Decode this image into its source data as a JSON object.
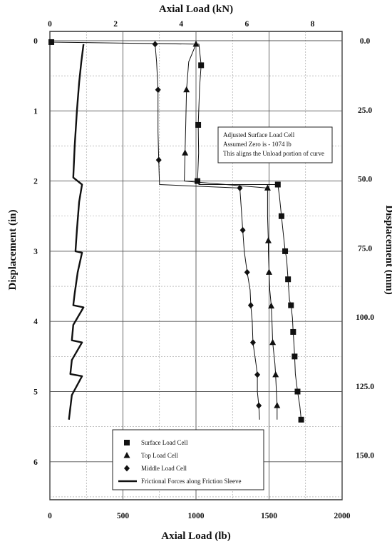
{
  "chart_data": {
    "type": "line",
    "top_axis": {
      "label": "Axial Load (kN)",
      "ticks": [
        "0",
        "2",
        "4",
        "6",
        "8"
      ],
      "range_kN": [
        0,
        8.9
      ]
    },
    "bottom_axis": {
      "label": "Axial Load (lb)",
      "ticks": [
        "0",
        "500",
        "1000",
        "1500",
        "2000"
      ],
      "range": [
        0,
        2000
      ]
    },
    "left_axis": {
      "label": "Displacement (in)",
      "ticks": [
        "0",
        "1",
        "2",
        "3",
        "4",
        "5",
        "6"
      ],
      "range": [
        0,
        6.5
      ],
      "inverted": true
    },
    "right_axis": {
      "label": "Displacement (mm)",
      "ticks": [
        "0.0",
        "25.0",
        "50.0",
        "75.0",
        "100.0",
        "125.0",
        "150.0"
      ]
    },
    "grid": true,
    "annotation": [
      "Adjusted Surface Load Cell",
      "Assumed Zero is - 1074 lb",
      "This aligns the Unload portion of curve"
    ],
    "legend_position": "bottom-center",
    "series": [
      {
        "name": "Surface Load Cell",
        "marker": "square",
        "points": [
          [
            10,
            0.02
          ],
          [
            1020,
            0.05
          ],
          [
            1035,
            0.35
          ],
          [
            1025,
            0.65
          ],
          [
            1015,
            1.2
          ],
          [
            1018,
            1.6
          ],
          [
            1010,
            2.0
          ],
          [
            1020,
            2.05
          ],
          [
            1560,
            2.05
          ],
          [
            1570,
            2.2
          ],
          [
            1585,
            2.5
          ],
          [
            1600,
            2.8
          ],
          [
            1610,
            3.0
          ],
          [
            1620,
            3.1
          ],
          [
            1630,
            3.4
          ],
          [
            1640,
            3.7
          ],
          [
            1650,
            3.77
          ],
          [
            1660,
            3.95
          ],
          [
            1665,
            4.15
          ],
          [
            1670,
            4.3
          ],
          [
            1675,
            4.5
          ],
          [
            1680,
            4.75
          ],
          [
            1695,
            5.0
          ],
          [
            1710,
            5.2
          ],
          [
            1720,
            5.4
          ]
        ]
      },
      {
        "name": "Top Load Cell",
        "marker": "triangle",
        "points": [
          [
            1000,
            0.05
          ],
          [
            950,
            0.3
          ],
          [
            935,
            0.7
          ],
          [
            930,
            1.2
          ],
          [
            925,
            1.6
          ],
          [
            920,
            2.0
          ],
          [
            1490,
            2.1
          ],
          [
            1490,
            2.5
          ],
          [
            1495,
            2.85
          ],
          [
            1495,
            3.0
          ],
          [
            1500,
            3.3
          ],
          [
            1505,
            3.55
          ],
          [
            1515,
            3.78
          ],
          [
            1520,
            4.0
          ],
          [
            1525,
            4.3
          ],
          [
            1540,
            4.6
          ],
          [
            1545,
            4.76
          ],
          [
            1550,
            5.0
          ],
          [
            1555,
            5.2
          ],
          [
            1555,
            5.4
          ]
        ]
      },
      {
        "name": "Middle Load Cell",
        "marker": "diamond",
        "points": [
          [
            720,
            0.05
          ],
          [
            730,
            0.3
          ],
          [
            740,
            0.7
          ],
          [
            740,
            1.3
          ],
          [
            745,
            1.7
          ],
          [
            750,
            2.05
          ],
          [
            1300,
            2.1
          ],
          [
            1310,
            2.4
          ],
          [
            1320,
            2.7
          ],
          [
            1330,
            3.0
          ],
          [
            1350,
            3.3
          ],
          [
            1370,
            3.55
          ],
          [
            1375,
            3.77
          ],
          [
            1385,
            4.0
          ],
          [
            1390,
            4.3
          ],
          [
            1410,
            4.6
          ],
          [
            1420,
            4.76
          ],
          [
            1420,
            5.0
          ],
          [
            1430,
            5.2
          ],
          [
            1435,
            5.4
          ]
        ]
      },
      {
        "name": "Frictional Forces along Friction Sleeve",
        "marker": "none",
        "points": [
          [
            230,
            0.05
          ],
          [
            215,
            0.3
          ],
          [
            200,
            0.6
          ],
          [
            185,
            1.0
          ],
          [
            170,
            1.5
          ],
          [
            160,
            1.95
          ],
          [
            220,
            2.05
          ],
          [
            200,
            2.3
          ],
          [
            185,
            2.7
          ],
          [
            175,
            3.0
          ],
          [
            220,
            3.02
          ],
          [
            190,
            3.3
          ],
          [
            170,
            3.6
          ],
          [
            160,
            3.77
          ],
          [
            230,
            3.8
          ],
          [
            160,
            4.05
          ],
          [
            150,
            4.27
          ],
          [
            220,
            4.3
          ],
          [
            150,
            4.55
          ],
          [
            140,
            4.75
          ],
          [
            220,
            4.78
          ],
          [
            150,
            5.05
          ],
          [
            130,
            5.4
          ]
        ]
      }
    ]
  }
}
